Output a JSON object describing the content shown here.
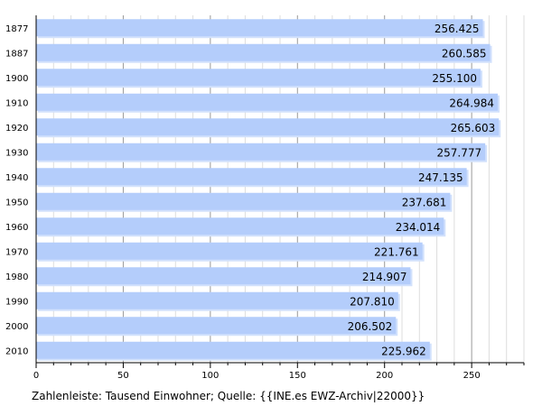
{
  "chart_data": {
    "type": "bar",
    "orientation": "horizontal",
    "categories": [
      "1877",
      "1887",
      "1900",
      "1910",
      "1920",
      "1930",
      "1940",
      "1950",
      "1960",
      "1970",
      "1980",
      "1990",
      "2000",
      "2010"
    ],
    "values": [
      256.425,
      260.585,
      255.1,
      264.984,
      265.603,
      257.777,
      247.135,
      237.681,
      234.014,
      221.761,
      214.907,
      207.81,
      206.502,
      225.962
    ],
    "value_labels": [
      "256.425",
      "260.585",
      "255.100",
      "264.984",
      "265.603",
      "257.777",
      "247.135",
      "237.681",
      "234.014",
      "221.761",
      "214.907",
      "207.810",
      "206.502",
      "225.962"
    ],
    "x_ticks": [
      "0",
      "50",
      "100",
      "150",
      "200",
      "250"
    ],
    "xlim": [
      0,
      280
    ],
    "grid": "vertical",
    "caption": "Zahlenleiste: Tausend Einwohner; Quelle: {{INE.es EWZ-Archiv|22000}}"
  },
  "colors": {
    "bar": "#b4cdfb",
    "bar_shadow": "#d2e1fc",
    "grid_major": "#999999",
    "grid_minor": "#dddddd"
  }
}
